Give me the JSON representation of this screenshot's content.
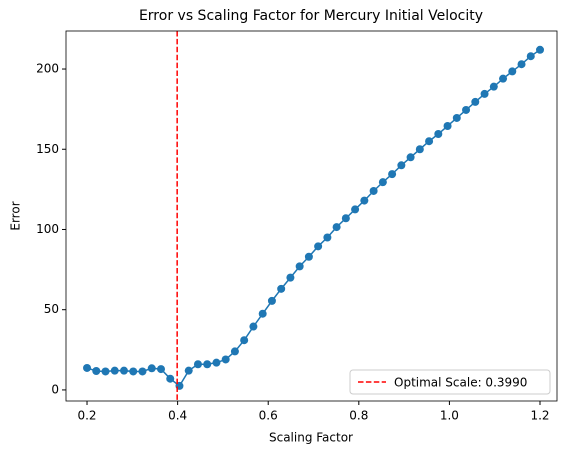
{
  "chart_data": {
    "type": "line",
    "title": "Error vs Scaling Factor for Mercury Initial Velocity",
    "xlabel": "Scaling Factor",
    "ylabel": "Error",
    "x": [
      0.2,
      0.2204,
      0.2408,
      0.2612,
      0.2816,
      0.302,
      0.3224,
      0.3429,
      0.3633,
      0.3837,
      0.4041,
      0.4245,
      0.4449,
      0.4653,
      0.4857,
      0.5061,
      0.5265,
      0.5469,
      0.5673,
      0.5878,
      0.6082,
      0.6286,
      0.649,
      0.6694,
      0.6898,
      0.7102,
      0.7306,
      0.751,
      0.7714,
      0.7918,
      0.8122,
      0.8327,
      0.8531,
      0.8735,
      0.8939,
      0.9143,
      0.9347,
      0.9551,
      0.9755,
      0.9959,
      1.0163,
      1.0367,
      1.0571,
      1.0776,
      1.098,
      1.1184,
      1.1388,
      1.1592,
      1.1796,
      1.2
    ],
    "series": [
      {
        "color": "#1f77b4",
        "values": [
          13.7,
          11.8,
          11.5,
          12,
          12,
          11.5,
          11.5,
          13.5,
          13,
          7,
          2.5,
          12,
          16,
          16,
          17,
          19,
          24,
          31,
          39.5,
          47.5,
          55.5,
          63,
          70,
          77,
          83,
          89.5,
          95,
          101.5,
          107,
          112.5,
          118,
          124,
          129.5,
          134.5,
          140,
          145,
          150,
          155,
          159.5,
          164.5,
          169.5,
          174.5,
          179.5,
          184.5,
          189,
          194,
          198.5,
          203,
          208,
          212
        ]
      }
    ],
    "vline": {
      "x": 0.399,
      "label": "Optimal Scale: 0.3990",
      "color": "#ff0000"
    },
    "xlim": [
      0.1536,
      1.2375
    ],
    "ylim": [
      -6.9,
      223.7
    ],
    "xticks": [
      0.2,
      0.4,
      0.6,
      0.8,
      {
        "value": 1,
        "label": "1.0"
      },
      1.2
    ],
    "yticks": [
      0,
      50,
      100,
      150,
      200
    ],
    "legend": "lower right"
  }
}
